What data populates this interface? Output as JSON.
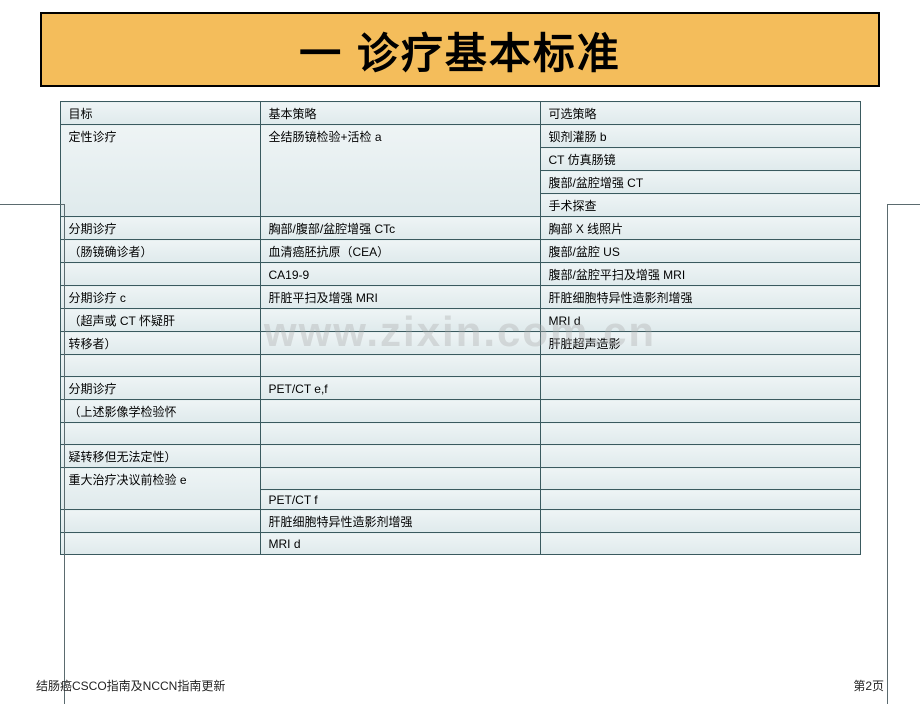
{
  "colors": {
    "title_bg": "#f4bd5b",
    "cell_border": "#3a5a5f",
    "cell_bg_top": "#eef4f5",
    "cell_bg_bottom": "#dfeaec"
  },
  "title": "一 诊疗基本标准",
  "watermark": "www.zixin.com.cn",
  "footer_left": "结肠癌CSCO指南及NCCN指南更新",
  "footer_right": "第2页",
  "header": {
    "goal": "目标",
    "basic": "基本策略",
    "optional": "可选策略"
  },
  "sections": [
    {
      "goal_main": "定性诊疗",
      "basic_main": "全结肠镜检验+活检 a",
      "rows": [
        {
          "opt": "钡剂灌肠 b"
        },
        {
          "opt": "CT 仿真肠镜"
        },
        {
          "opt": "腹部/盆腔增强 CT"
        },
        {
          "opt": "手术探查"
        }
      ]
    },
    {
      "goal_main": "分期诊疗",
      "goal_sub": "（肠镜确诊者）",
      "rows": [
        {
          "basic": "胸部/腹部/盆腔增强 CTc",
          "opt": "胸部 X 线照片"
        },
        {
          "basic": "血清癌胚抗原（CEA）",
          "opt": "腹部/盆腔 US"
        },
        {
          "basic": "CA19-9",
          "opt": "腹部/盆腔平扫及增强 MRI"
        }
      ]
    },
    {
      "goal_main": "分期诊疗 c",
      "goal_sub1": "（超声或 CT 怀疑肝",
      "goal_sub2": "转移者）",
      "rows": [
        {
          "basic": "肝脏平扫及增强 MRI",
          "opt": "肝脏细胞特异性造影剂增强"
        },
        {
          "basic": "",
          "opt": "MRI d"
        },
        {
          "basic": "",
          "opt": "肝脏超声造影"
        }
      ]
    },
    {
      "goal_main": "分期诊疗",
      "goal_sub1": "（上述影像学检验怀",
      "goal_sub2": "疑转移但无法定性）",
      "rows": [
        {
          "basic": "PET/CT e,f",
          "opt": ""
        }
      ]
    },
    {
      "goal_main": "重大治疗决议前检验 e",
      "rows": [
        {
          "basic": "PET/CT f",
          "opt": ""
        },
        {
          "basic": "肝脏细胞特异性造影剂增强",
          "opt": ""
        },
        {
          "basic": "MRI d",
          "opt": ""
        }
      ]
    }
  ]
}
